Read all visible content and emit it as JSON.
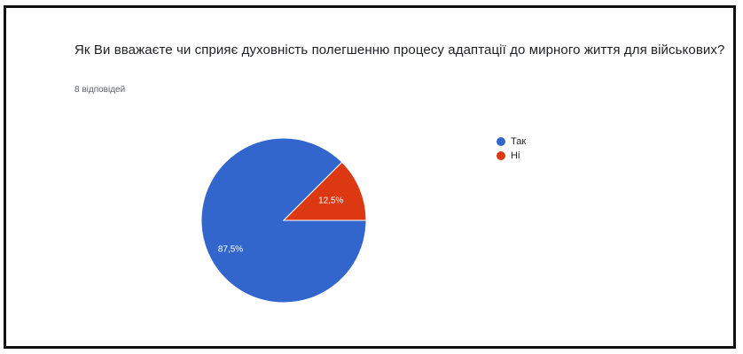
{
  "survey": {
    "question": "Як Ви вважаєте чи сприяє духовність полегшенню процесу адаптації до мирного життя для військових?",
    "responses": "8 відповідей"
  },
  "legend": {
    "items": [
      {
        "label": "Так",
        "color": "#3366cc"
      },
      {
        "label": "Ні",
        "color": "#dc3912"
      }
    ]
  },
  "chart_data": {
    "type": "pie",
    "title": "Як Ви вважаєте чи сприяє духовність полегшенню процесу адаптації до мирного життя для військових?",
    "categories": [
      "Так",
      "Ні"
    ],
    "values": [
      87.5,
      12.5
    ],
    "labels": [
      "87,5%",
      "12,5%"
    ],
    "colors": [
      "#3366cc",
      "#dc3912"
    ],
    "legend_position": "right"
  }
}
